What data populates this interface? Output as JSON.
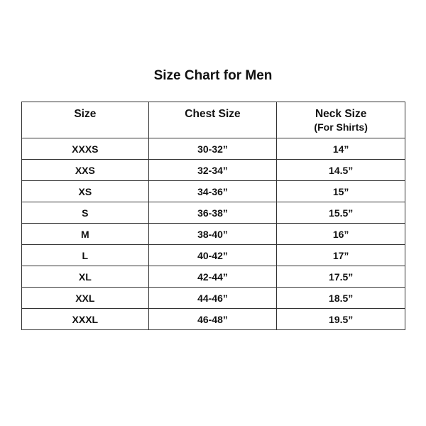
{
  "title": "Size Chart for Men",
  "headers": [
    {
      "label": "Size",
      "sub": ""
    },
    {
      "label": "Chest Size",
      "sub": ""
    },
    {
      "label": "Neck Size",
      "sub": "(For Shirts)"
    }
  ],
  "rows": [
    [
      "XXXS",
      "30-32”",
      "14”"
    ],
    [
      "XXS",
      "32-34”",
      "14.5”"
    ],
    [
      "XS",
      "34-36”",
      "15”"
    ],
    [
      "S",
      "36-38”",
      "15.5”"
    ],
    [
      "M",
      "38-40”",
      "16”"
    ],
    [
      "L",
      "40-42”",
      "17”"
    ],
    [
      "XL",
      "42-44”",
      "17.5”"
    ],
    [
      "XXL",
      "44-46”",
      "18.5”"
    ],
    [
      "XXXL",
      "46-48”",
      "19.5”"
    ]
  ]
}
